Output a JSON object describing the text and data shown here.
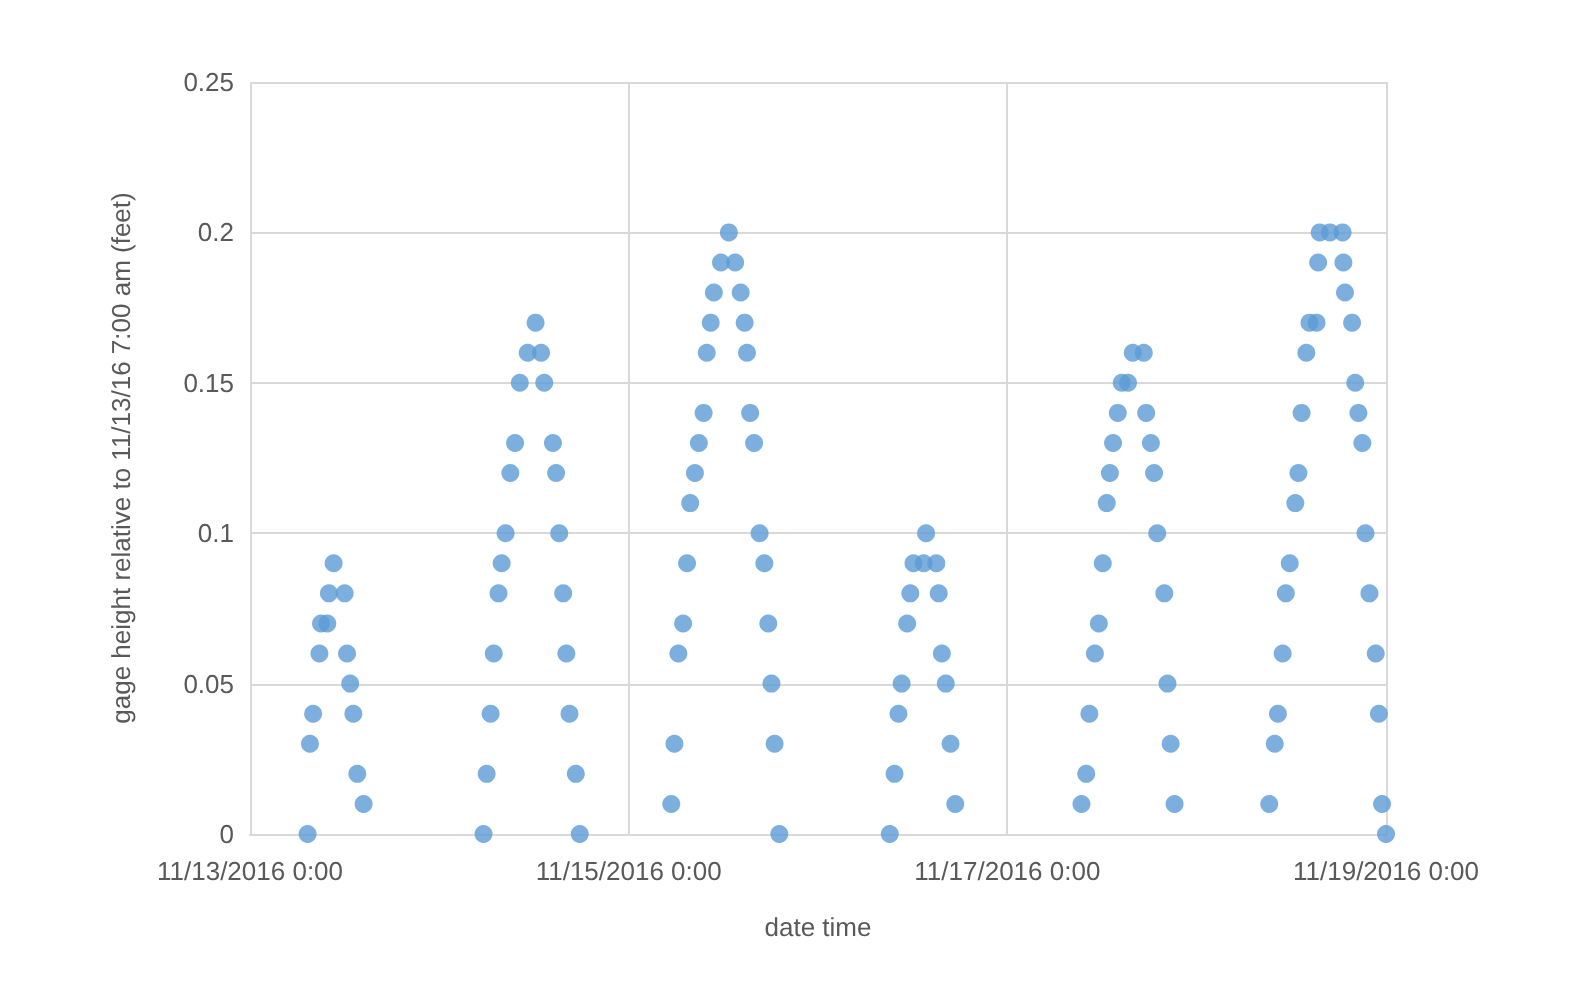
{
  "chart_data": {
    "type": "scatter",
    "xlabel": "date time",
    "ylabel": "gage height relative to 11/13/16 7:00 am (feet)",
    "xlim": [
      "2016-11-13T00:00",
      "2016-11-19T00:00"
    ],
    "xticks": [
      {
        "value": "2016-11-13T00:00",
        "label": "11/13/2016 0:00"
      },
      {
        "value": "2016-11-15T00:00",
        "label": "11/15/2016 0:00"
      },
      {
        "value": "2016-11-17T00:00",
        "label": "11/17/2016 0:00"
      },
      {
        "value": "2016-11-19T00:00",
        "label": "11/19/2016 0:00"
      }
    ],
    "ylim": [
      0,
      0.25
    ],
    "yticks": [
      0,
      0.05,
      0.1,
      0.15,
      0.2,
      0.25
    ],
    "grid": true,
    "marker": "circle",
    "series": [
      {
        "color": "#5b9bd5",
        "x": [
          "2016-11-13T07:18",
          "2016-11-13T07:36",
          "2016-11-13T08:00",
          "2016-11-13T08:48",
          "2016-11-13T09:00",
          "2016-11-13T09:48",
          "2016-11-13T10:00",
          "2016-11-13T10:36",
          "2016-11-13T12:00",
          "2016-11-13T12:18",
          "2016-11-13T12:42",
          "2016-11-13T13:06",
          "2016-11-13T13:36",
          "2016-11-13T14:24",
          "2016-11-14T05:36",
          "2016-11-14T06:00",
          "2016-11-14T06:30",
          "2016-11-14T06:54",
          "2016-11-14T07:30",
          "2016-11-14T07:54",
          "2016-11-14T08:24",
          "2016-11-14T09:00",
          "2016-11-14T09:36",
          "2016-11-14T10:12",
          "2016-11-14T11:12",
          "2016-11-14T12:12",
          "2016-11-14T12:54",
          "2016-11-14T13:18",
          "2016-11-14T14:24",
          "2016-11-14T14:48",
          "2016-11-14T15:12",
          "2016-11-14T15:42",
          "2016-11-14T16:06",
          "2016-11-14T16:30",
          "2016-11-14T17:18",
          "2016-11-14T17:48",
          "2016-11-15T05:24",
          "2016-11-15T05:48",
          "2016-11-15T06:18",
          "2016-11-15T06:54",
          "2016-11-15T07:24",
          "2016-11-15T07:48",
          "2016-11-15T08:24",
          "2016-11-15T08:54",
          "2016-11-15T09:30",
          "2016-11-15T09:54",
          "2016-11-15T10:24",
          "2016-11-15T10:48",
          "2016-11-15T11:42",
          "2016-11-15T12:42",
          "2016-11-15T13:30",
          "2016-11-15T14:12",
          "2016-11-15T14:42",
          "2016-11-15T15:00",
          "2016-11-15T15:24",
          "2016-11-15T15:54",
          "2016-11-15T16:36",
          "2016-11-15T17:12",
          "2016-11-15T17:42",
          "2016-11-15T18:06",
          "2016-11-15T18:30",
          "2016-11-15T19:06",
          "2016-11-16T09:06",
          "2016-11-16T09:42",
          "2016-11-16T10:12",
          "2016-11-16T10:36",
          "2016-11-16T11:18",
          "2016-11-16T11:42",
          "2016-11-16T12:06",
          "2016-11-16T13:24",
          "2016-11-16T13:42",
          "2016-11-16T15:00",
          "2016-11-16T15:18",
          "2016-11-16T15:42",
          "2016-11-16T16:12",
          "2016-11-16T16:48",
          "2016-11-16T17:24",
          "2016-11-17T09:24",
          "2016-11-17T10:00",
          "2016-11-17T10:24",
          "2016-11-17T11:06",
          "2016-11-17T11:36",
          "2016-11-17T12:06",
          "2016-11-17T12:36",
          "2016-11-17T13:00",
          "2016-11-17T13:24",
          "2016-11-17T14:00",
          "2016-11-17T14:30",
          "2016-11-17T15:18",
          "2016-11-17T15:54",
          "2016-11-17T17:18",
          "2016-11-17T17:36",
          "2016-11-17T18:12",
          "2016-11-17T18:36",
          "2016-11-17T19:00",
          "2016-11-17T19:54",
          "2016-11-17T20:18",
          "2016-11-17T20:42",
          "2016-11-17T21:12",
          "2016-11-18T09:12",
          "2016-11-18T09:54",
          "2016-11-18T10:18",
          "2016-11-18T10:54",
          "2016-11-18T11:18",
          "2016-11-18T11:48",
          "2016-11-18T12:30",
          "2016-11-18T12:54",
          "2016-11-18T13:18",
          "2016-11-18T13:54",
          "2016-11-18T14:18",
          "2016-11-18T15:12",
          "2016-11-18T15:24",
          "2016-11-18T15:36",
          "2016-11-18T16:54",
          "2016-11-18T18:30",
          "2016-11-18T18:36",
          "2016-11-18T18:48",
          "2016-11-18T19:42",
          "2016-11-18T20:06",
          "2016-11-18T20:30",
          "2016-11-18T21:00",
          "2016-11-18T21:24",
          "2016-11-18T21:54",
          "2016-11-18T22:42",
          "2016-11-18T23:06",
          "2016-11-18T23:30",
          "2016-11-19T00:00"
        ],
        "values": [
          0,
          0.03,
          0.04,
          0.06,
          0.07,
          0.07,
          0.08,
          0.09,
          0.08,
          0.06,
          0.05,
          0.04,
          0.02,
          0.01,
          0,
          0.02,
          0.04,
          0.06,
          0.08,
          0.09,
          0.1,
          0.12,
          0.13,
          0.15,
          0.16,
          0.17,
          0.16,
          0.15,
          0.13,
          0.12,
          0.1,
          0.08,
          0.06,
          0.04,
          0.02,
          0,
          0.01,
          0.03,
          0.06,
          0.07,
          0.09,
          0.11,
          0.12,
          0.13,
          0.14,
          0.16,
          0.17,
          0.18,
          0.19,
          0.2,
          0.19,
          0.18,
          0.17,
          0.16,
          0.14,
          0.13,
          0.1,
          0.09,
          0.07,
          0.05,
          0.03,
          0,
          0,
          0.02,
          0.04,
          0.05,
          0.07,
          0.08,
          0.09,
          0.09,
          0.1,
          0.09,
          0.08,
          0.06,
          0.05,
          0.03,
          0.01,
          0.01,
          0.02,
          0.04,
          0.06,
          0.07,
          0.09,
          0.11,
          0.12,
          0.13,
          0.14,
          0.15,
          0.15,
          0.16,
          0.16,
          0.14,
          0.13,
          0.12,
          0.1,
          0.08,
          0.05,
          0.03,
          0.01,
          0.01,
          0.03,
          0.04,
          0.06,
          0.08,
          0.09,
          0.11,
          0.12,
          0.14,
          0.16,
          0.17,
          0.17,
          0.19,
          0.2,
          0.2,
          0.2,
          0.19,
          0.18,
          0.17,
          0.15,
          0.14,
          0.13,
          0.1,
          0.08,
          0.06,
          0.04,
          0.01,
          0
        ]
      }
    ]
  }
}
